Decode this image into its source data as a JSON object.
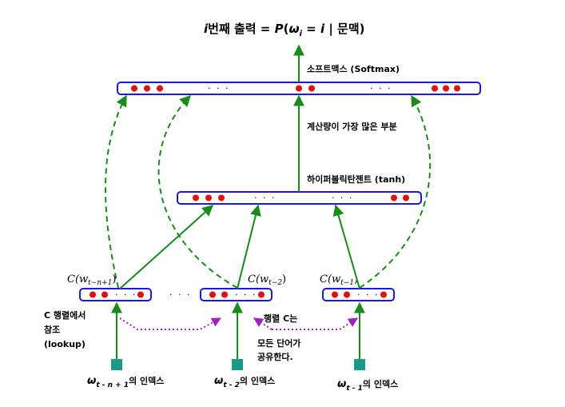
{
  "title": {
    "i": "i",
    "rest": "번째 출력 = ",
    "P": "P",
    "open": "(",
    "omega": "ω",
    "sub_i": "i",
    "eq": " = ",
    "i2": "i",
    "bar_context": " | 문맥)"
  },
  "labels": {
    "softmax": "소프트맥스 (Softmax)",
    "compute": "계산량이 가장 많은 부분",
    "tanh": "하이퍼볼릭탄젠트 (tanh)",
    "lookup_1": "C 행렬에서",
    "lookup_2": "참조",
    "lookup_3": "(lookup)",
    "shared_1": "행렬 C는",
    "shared_2": "모든 단어가",
    "shared_3": "공유한다."
  },
  "ellipsis": "· · ·",
  "embed": {
    "c1": "C(w",
    "c1_sub": "t−n+1",
    "c2": "C(w",
    "c2_sub": "t−2",
    "c3": "C(w",
    "c3_sub": "t−1",
    "close": ")"
  },
  "inputs": {
    "w1": "ω",
    "w1_sub": "t - n + 1",
    "w1_tail": "의 인덱스",
    "w2": "ω",
    "w2_sub": "t - 2",
    "w2_tail": "의 인덱스",
    "w3": "ω",
    "w3_sub": "t - 1",
    "w3_tail": "의 인덱스"
  },
  "colors": {
    "layer_border": "#1a1ad6",
    "neuron": "#e01010",
    "arrow": "#1a8a1a",
    "shared_arrow": "#a020c0",
    "input_box": "#1a9a8a"
  }
}
